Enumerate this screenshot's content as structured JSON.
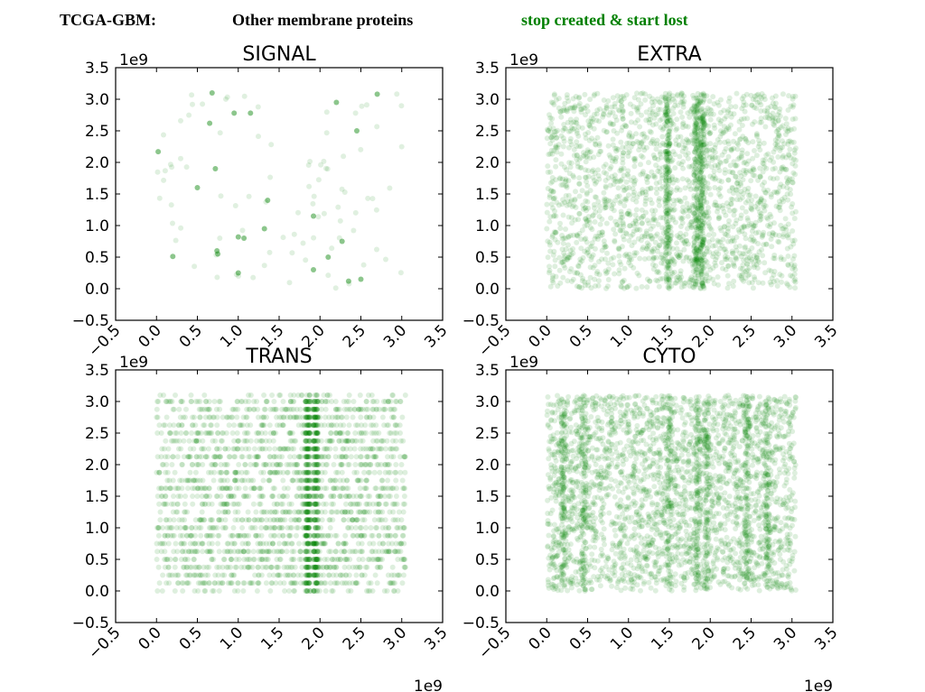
{
  "header": {
    "dataset": "TCGA-GBM:",
    "category": "Other membrane proteins",
    "mutation": "stop created & start lost",
    "mutation_color": "#008000"
  },
  "chart_data": [
    {
      "type": "scatter",
      "title": "SIGNAL",
      "xlim": [
        -0.5,
        3.5
      ],
      "ylim": [
        -0.5,
        3.5
      ],
      "xticks": [
        "−0.5",
        "0.0",
        "0.5",
        "1.0",
        "1.5",
        "2.0",
        "2.5",
        "3.0",
        "3.5"
      ],
      "yticks": [
        "−0.5",
        "0.0",
        "0.5",
        "1.0",
        "1.5",
        "2.0",
        "2.5",
        "3.0",
        "3.5"
      ],
      "x_offset_label": "1e9",
      "y_offset_label": "1e9",
      "color": "#008000",
      "alpha": 0.12,
      "density": "sparse",
      "points": [
        [
          0.02,
          2.17
        ],
        [
          0.5,
          1.6
        ],
        [
          0.2,
          0.51
        ],
        [
          0.68,
          3.1
        ],
        [
          0.75,
          0.55
        ],
        [
          0.74,
          0.6
        ],
        [
          1.07,
          0.8
        ],
        [
          1.0,
          0.82
        ],
        [
          0.95,
          2.78
        ],
        [
          1.15,
          2.78
        ],
        [
          1.0,
          0.25
        ],
        [
          1.92,
          1.15
        ],
        [
          1.92,
          0.3
        ],
        [
          2.2,
          2.95
        ],
        [
          2.35,
          0.12
        ],
        [
          2.5,
          0.15
        ],
        [
          2.7,
          3.08
        ],
        [
          2.27,
          0.75
        ],
        [
          0.65,
          2.62
        ],
        [
          1.36,
          1.4
        ],
        [
          1.32,
          0.95
        ],
        [
          0.72,
          1.9
        ],
        [
          2.45,
          2.5
        ],
        [
          2.1,
          0.5
        ]
      ],
      "extra_points": 90
    },
    {
      "type": "scatter",
      "title": "EXTRA",
      "xlim": [
        -0.5,
        3.5
      ],
      "ylim": [
        -0.5,
        3.5
      ],
      "xticks": [
        "−0.5",
        "0.0",
        "0.5",
        "1.0",
        "1.5",
        "2.0",
        "2.5",
        "3.0",
        "3.5"
      ],
      "yticks": [
        "−0.5",
        "0.0",
        "0.5",
        "1.0",
        "1.5",
        "2.0",
        "2.5",
        "3.0",
        "3.5"
      ],
      "x_offset_label": "1e9",
      "y_offset_label": "1e9",
      "color": "#008000",
      "alpha": 0.13,
      "density": "dense",
      "x_range": [
        0.0,
        3.05
      ],
      "y_range": [
        0.0,
        3.1
      ],
      "dense_columns": [
        1.48,
        1.83,
        1.9
      ],
      "n_points": 2600
    },
    {
      "type": "scatter",
      "title": "TRANS",
      "xlim": [
        -0.5,
        3.5
      ],
      "ylim": [
        -0.5,
        3.5
      ],
      "xticks": [
        "−0.5",
        "0.0",
        "0.5",
        "1.0",
        "1.5",
        "2.0",
        "2.5",
        "3.0",
        "3.5"
      ],
      "yticks": [
        "−0.5",
        "0.0",
        "0.5",
        "1.0",
        "1.5",
        "2.0",
        "2.5",
        "3.0",
        "3.5"
      ],
      "x_offset_label": "1e9",
      "y_offset_label": "1e9",
      "color": "#008000",
      "alpha": 0.13,
      "density": "dense-gridded",
      "x_range": [
        0.0,
        3.05
      ],
      "y_range": [
        0.0,
        3.1
      ],
      "dense_columns": [
        1.85,
        1.95
      ],
      "n_points": 2600
    },
    {
      "type": "scatter",
      "title": "CYTO",
      "xlim": [
        -0.5,
        3.5
      ],
      "ylim": [
        -0.5,
        3.5
      ],
      "xticks": [
        "−0.5",
        "0.0",
        "0.5",
        "1.0",
        "1.5",
        "2.0",
        "2.5",
        "3.0",
        "3.5"
      ],
      "yticks": [
        "−0.5",
        "0.0",
        "0.5",
        "1.0",
        "1.5",
        "2.0",
        "2.5",
        "3.0",
        "3.5"
      ],
      "x_offset_label": "1e9",
      "y_offset_label": "1e9",
      "color": "#008000",
      "alpha": 0.13,
      "density": "dense",
      "x_range": [
        0.0,
        3.05
      ],
      "y_range": [
        0.0,
        3.1
      ],
      "dense_columns": [
        0.2,
        0.45,
        1.5,
        1.85,
        1.95,
        2.45,
        2.7
      ],
      "n_points": 3400
    }
  ]
}
